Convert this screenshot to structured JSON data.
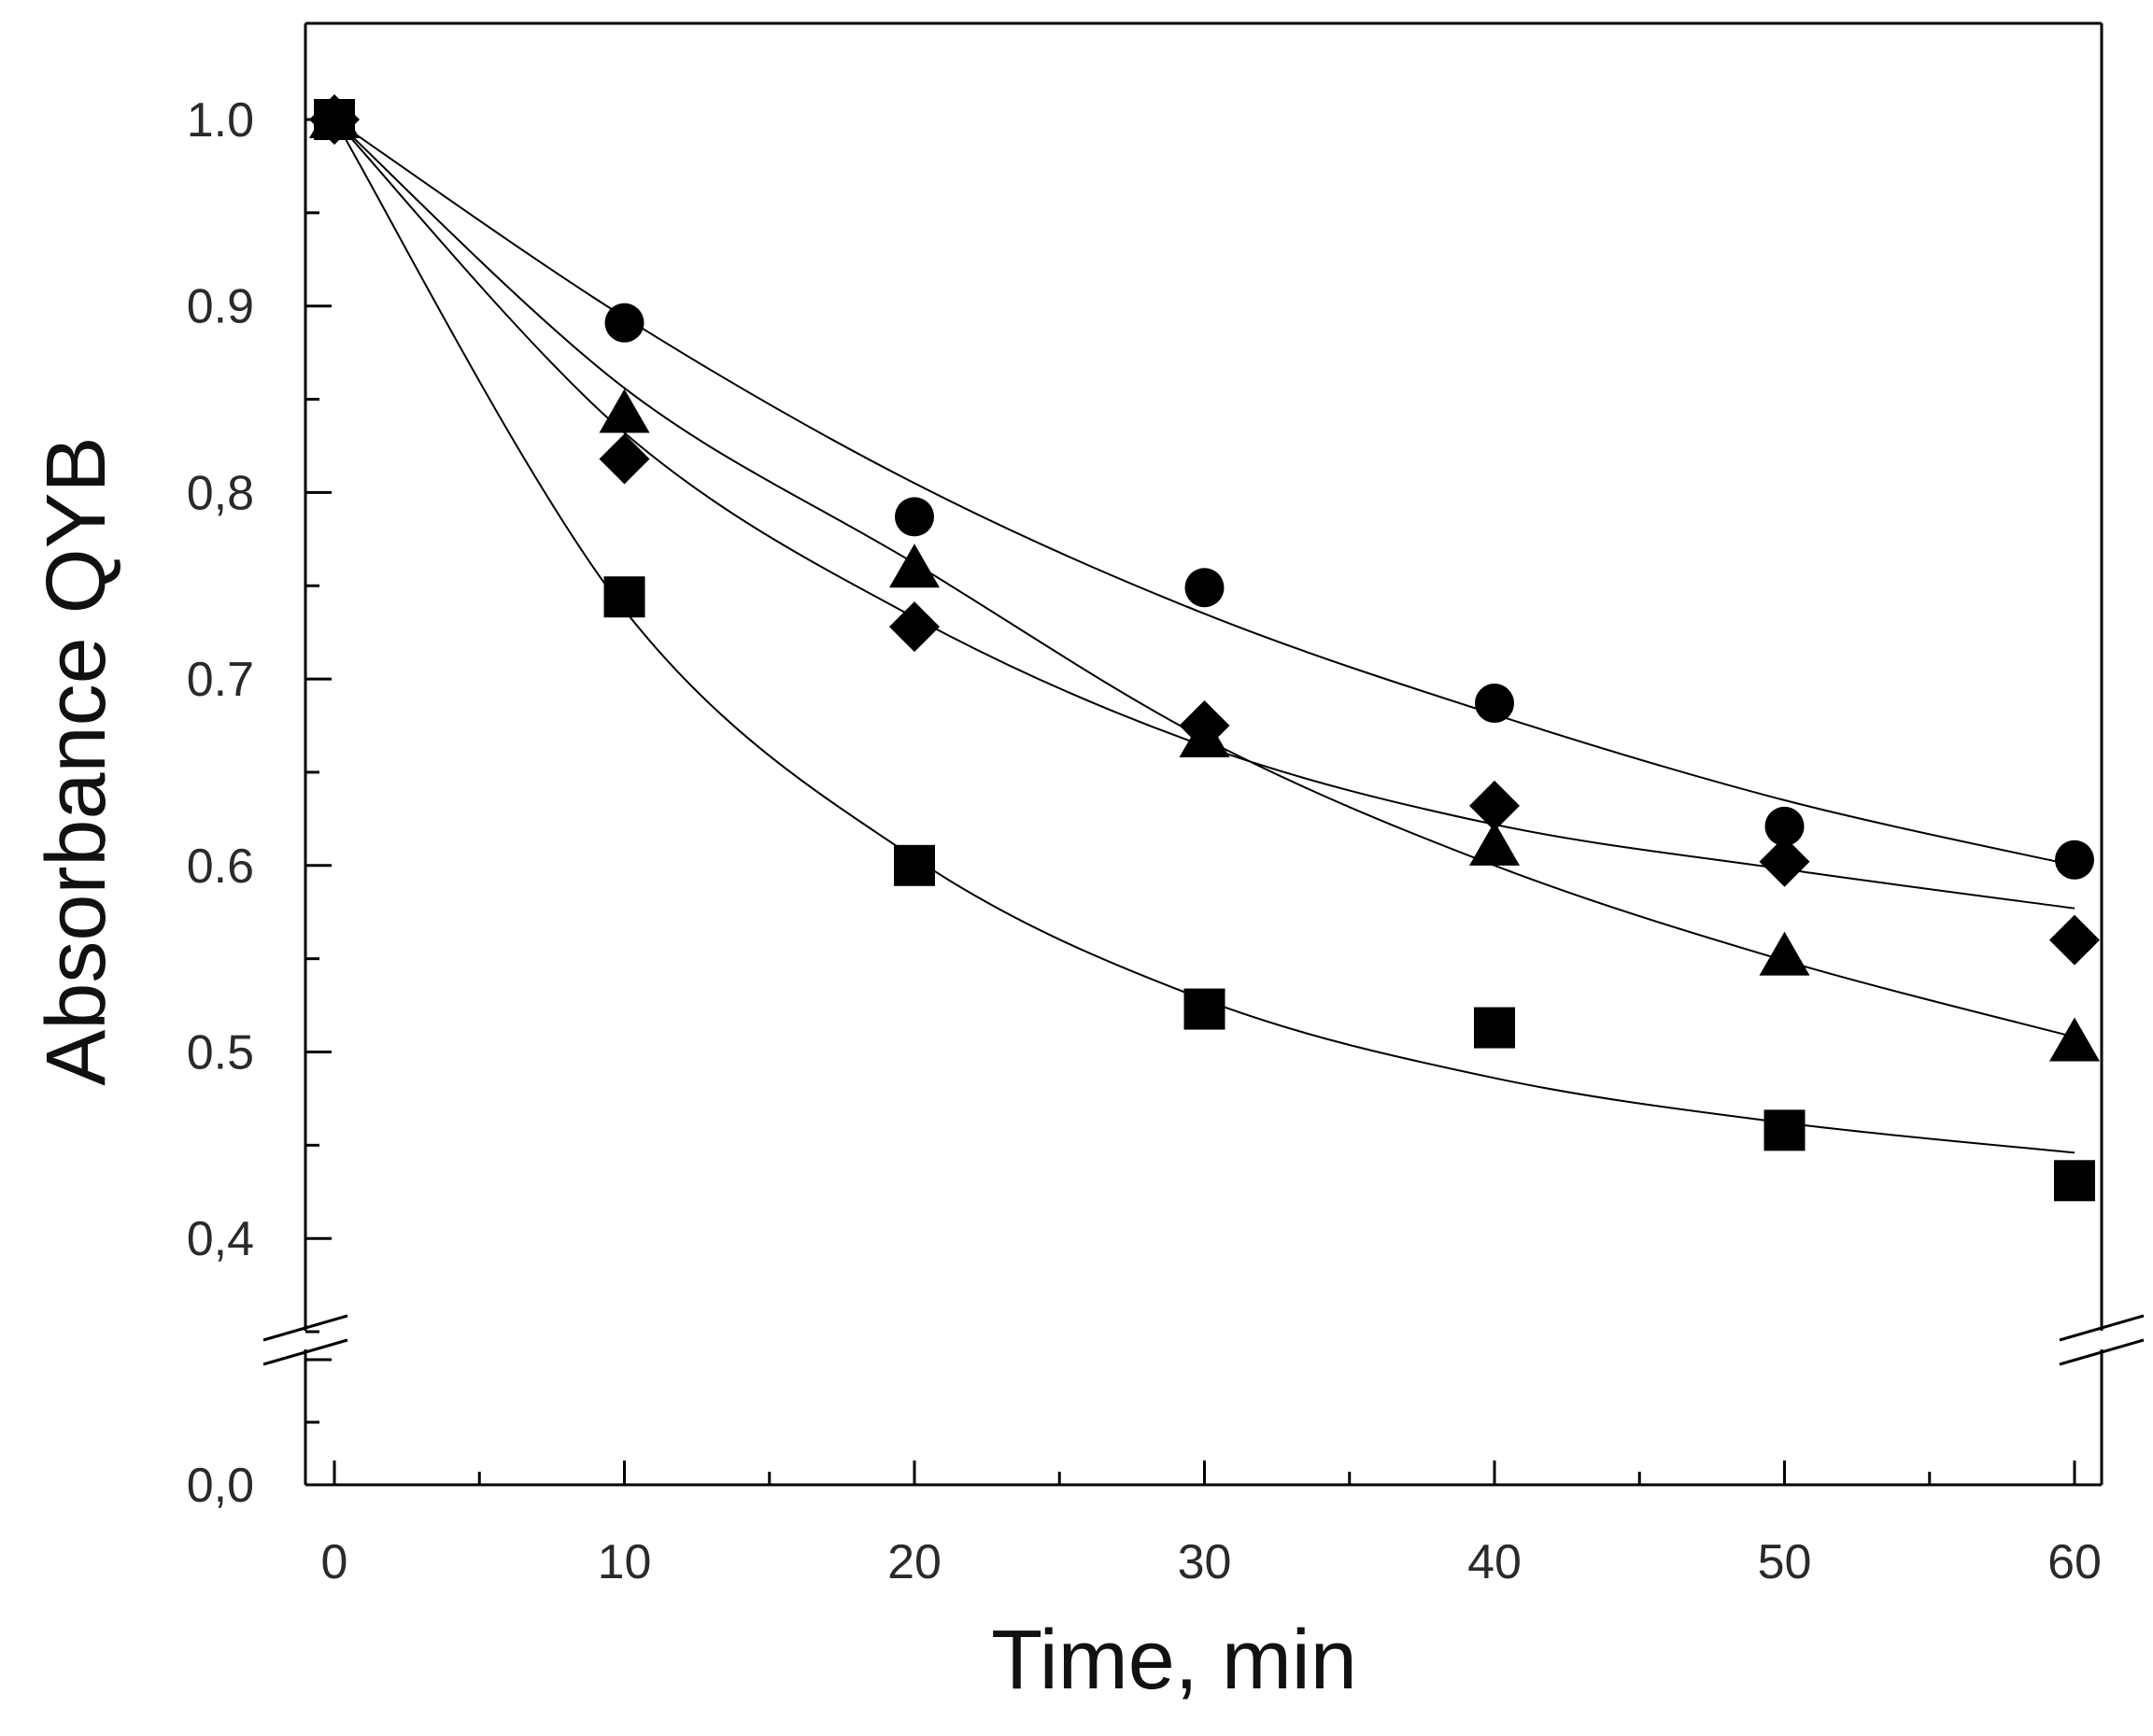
{
  "chart_data": {
    "type": "scatter",
    "title": "",
    "xlabel": "Time, min",
    "ylabel": "Absorbance QYB",
    "xlim": [
      -1,
      61
    ],
    "ylim": [
      0.0,
      1.05
    ],
    "axis_break": {
      "from": 0.35,
      "to": 0.1
    },
    "x_ticks": [
      0,
      10,
      20,
      30,
      40,
      50,
      60
    ],
    "x_tick_labels": [
      "0",
      "10",
      "20",
      "30",
      "40",
      "50",
      "60"
    ],
    "y_ticks": [
      0.4,
      0.5,
      0.6,
      0.7,
      0.8,
      0.9,
      1.0
    ],
    "y_tick_labels": [
      "0,4",
      "0.5",
      "0.6",
      "0.7",
      "0,8",
      "0.9",
      "1.0"
    ],
    "y_zero_label": "0,0",
    "legend": "none",
    "grid": false,
    "x": [
      0,
      10,
      20,
      30,
      40,
      50,
      60
    ],
    "series": [
      {
        "name": "circle",
        "marker": "circle",
        "values": [
          1.0,
          0.891,
          0.787,
          0.749,
          0.687,
          0.621,
          0.603
        ],
        "fit": [
          1.0,
          0.894,
          0.805,
          0.735,
          0.681,
          0.635,
          0.6
        ]
      },
      {
        "name": "triangle",
        "marker": "triangle",
        "values": [
          1.0,
          0.842,
          0.759,
          0.668,
          0.61,
          0.551,
          0.505
        ],
        "fit": [
          1.0,
          0.856,
          0.762,
          0.668,
          0.6,
          0.549,
          0.508
        ]
      },
      {
        "name": "diamond",
        "marker": "diamond",
        "values": [
          1.0,
          0.818,
          0.728,
          0.675,
          0.632,
          0.602,
          0.56
        ],
        "fit": [
          1.0,
          0.832,
          0.733,
          0.664,
          0.622,
          0.598,
          0.577
        ]
      },
      {
        "name": "square",
        "marker": "square",
        "values": [
          1.0,
          0.744,
          0.6,
          0.523,
          0.513,
          0.458,
          0.431
        ],
        "fit": [
          1.0,
          0.737,
          0.604,
          0.528,
          0.486,
          0.462,
          0.446
        ]
      }
    ]
  }
}
